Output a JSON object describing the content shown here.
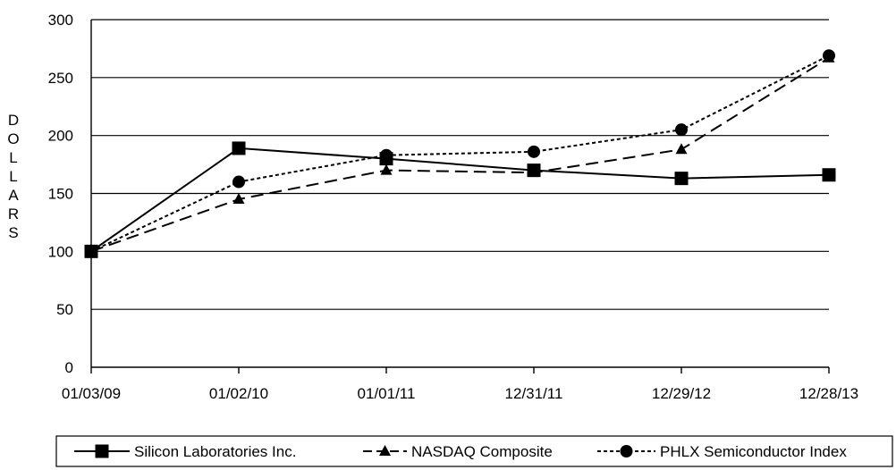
{
  "chart_data": {
    "type": "line",
    "title": "",
    "xlabel": "",
    "ylabel": "DOLLARS",
    "categories": [
      "01/03/09",
      "01/02/10",
      "01/01/11",
      "12/31/11",
      "12/29/12",
      "12/28/13"
    ],
    "ylim": [
      0,
      300
    ],
    "yticks": [
      0,
      50,
      100,
      150,
      200,
      250,
      300
    ],
    "grid": true,
    "legend_position": "bottom",
    "series": [
      {
        "name": "Silicon Laboratories Inc.",
        "marker": "square",
        "dash": "solid",
        "color": "#000000",
        "values": [
          100,
          189,
          180,
          170,
          163,
          166
        ]
      },
      {
        "name": "NASDAQ Composite",
        "marker": "triangle",
        "dash": "dashed",
        "color": "#000000",
        "values": [
          100,
          145,
          170,
          168,
          188,
          267
        ]
      },
      {
        "name": "PHLX Semiconductor Index",
        "marker": "circle",
        "dash": "dotted",
        "color": "#000000",
        "values": [
          100,
          160,
          183,
          186,
          205,
          269
        ]
      }
    ]
  }
}
